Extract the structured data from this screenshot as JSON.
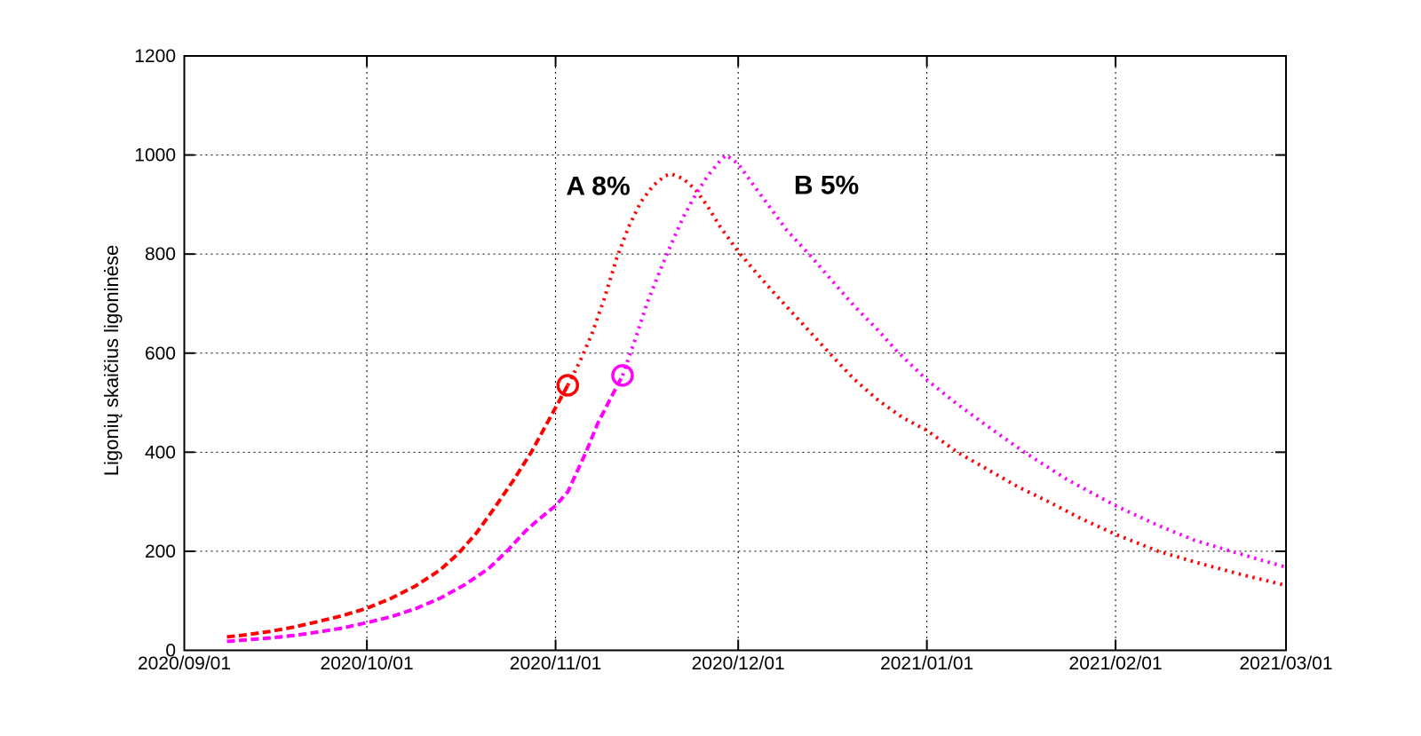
{
  "chart_data": {
    "type": "line",
    "title": "",
    "xlabel": "",
    "ylabel": "Ligonių skaičius ligoninėse",
    "grid": true,
    "ylim": [
      0,
      1200
    ],
    "y_ticks": [
      0,
      200,
      400,
      600,
      800,
      1000,
      1200
    ],
    "x_unit": "days since 2020/09/01",
    "x_range_days": [
      0,
      181
    ],
    "x_ticks": [
      {
        "label": "2020/09/01",
        "day": 0
      },
      {
        "label": "2020/10/01",
        "day": 30
      },
      {
        "label": "2020/11/01",
        "day": 61
      },
      {
        "label": "2020/12/01",
        "day": 91
      },
      {
        "label": "2021/01/01",
        "day": 122
      },
      {
        "label": "2021/02/01",
        "day": 153
      },
      {
        "label": "2021/03/01",
        "day": 181
      }
    ],
    "series": [
      {
        "name": "A 8%",
        "label": "A 8%",
        "color": "#ff0000",
        "label_anchor": {
          "day": 68,
          "value": 938
        },
        "marker": {
          "day": 63,
          "value": 535
        },
        "history_style": "dashed",
        "forecast_style": "dotted",
        "history": [
          [
            7,
            27
          ],
          [
            10,
            31
          ],
          [
            14,
            38
          ],
          [
            18,
            47
          ],
          [
            22,
            58
          ],
          [
            26,
            70
          ],
          [
            30,
            85
          ],
          [
            34,
            105
          ],
          [
            38,
            130
          ],
          [
            42,
            162
          ],
          [
            45,
            195
          ],
          [
            48,
            237
          ],
          [
            51,
            288
          ],
          [
            54,
            342
          ],
          [
            57,
            400
          ],
          [
            59,
            445
          ],
          [
            61,
            490
          ],
          [
            63,
            535
          ]
        ],
        "forecast": [
          [
            63,
            535
          ],
          [
            65,
            583
          ],
          [
            67,
            640
          ],
          [
            69,
            710
          ],
          [
            71,
            790
          ],
          [
            73,
            855
          ],
          [
            75,
            905
          ],
          [
            77,
            938
          ],
          [
            79,
            958
          ],
          [
            80,
            962
          ],
          [
            82,
            952
          ],
          [
            84,
            930
          ],
          [
            86,
            896
          ],
          [
            88,
            856
          ],
          [
            91,
            805
          ],
          [
            94,
            762
          ],
          [
            97,
            720
          ],
          [
            100,
            680
          ],
          [
            103,
            640
          ],
          [
            106,
            600
          ],
          [
            110,
            548
          ],
          [
            114,
            505
          ],
          [
            118,
            470
          ],
          [
            122,
            444
          ],
          [
            127,
            400
          ],
          [
            132,
            365
          ],
          [
            137,
            330
          ],
          [
            142,
            300
          ],
          [
            147,
            268
          ],
          [
            153,
            234
          ],
          [
            160,
            200
          ],
          [
            167,
            175
          ],
          [
            174,
            152
          ],
          [
            181,
            131
          ]
        ]
      },
      {
        "name": "B 5%",
        "label": "B 5%",
        "color": "#ff00ff",
        "label_anchor": {
          "day": 105.5,
          "value": 940
        },
        "marker": {
          "day": 72,
          "value": 555
        },
        "history_style": "dashed",
        "forecast_style": "dotted",
        "history": [
          [
            7,
            18
          ],
          [
            10,
            21
          ],
          [
            14,
            25
          ],
          [
            18,
            30
          ],
          [
            22,
            37
          ],
          [
            26,
            45
          ],
          [
            30,
            56
          ],
          [
            34,
            68
          ],
          [
            38,
            84
          ],
          [
            42,
            105
          ],
          [
            46,
            132
          ],
          [
            50,
            165
          ],
          [
            53,
            200
          ],
          [
            56,
            240
          ],
          [
            58,
            262
          ],
          [
            61,
            292
          ],
          [
            63,
            320
          ],
          [
            66,
            400
          ],
          [
            68,
            460
          ],
          [
            70,
            508
          ],
          [
            72,
            555
          ]
        ],
        "forecast": [
          [
            72,
            555
          ],
          [
            74,
            625
          ],
          [
            76,
            700
          ],
          [
            78,
            762
          ],
          [
            80,
            820
          ],
          [
            82,
            875
          ],
          [
            84,
            920
          ],
          [
            86,
            958
          ],
          [
            88,
            988
          ],
          [
            89,
            1000
          ],
          [
            91,
            982
          ],
          [
            93,
            948
          ],
          [
            96,
            898
          ],
          [
            99,
            848
          ],
          [
            103,
            795
          ],
          [
            106,
            752
          ],
          [
            110,
            696
          ],
          [
            114,
            646
          ],
          [
            117,
            605
          ],
          [
            122,
            546
          ],
          [
            127,
            497
          ],
          [
            132,
            452
          ],
          [
            138,
            400
          ],
          [
            145,
            345
          ],
          [
            153,
            292
          ],
          [
            160,
            252
          ],
          [
            166,
            222
          ],
          [
            172,
            200
          ],
          [
            177,
            182
          ],
          [
            181,
            168
          ]
        ]
      }
    ]
  }
}
